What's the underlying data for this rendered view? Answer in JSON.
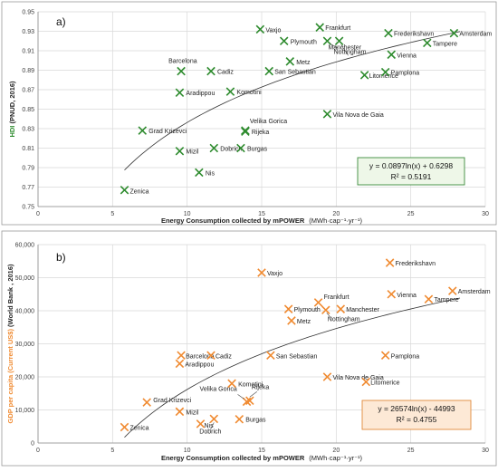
{
  "colors": {
    "panel_a_marker": "#2e8b2e",
    "panel_a_ylabel": "#2e8b2e",
    "panel_b_marker": "#f08a30",
    "panel_b_ylabel": "#f08a30",
    "panel_a_box_bg": "#eef7e8",
    "panel_a_box_border": "#3a8a3a",
    "panel_b_box_bg": "#fde9d6",
    "panel_b_box_border": "#e08a3a"
  },
  "chart_data": [
    {
      "type": "scatter",
      "panel": "a)",
      "xlabel": "Energy Consumption collected by mPOWER",
      "xlabel_units": "(MWh·cap⁻¹·yr⁻¹)",
      "ylabel_main": "HDI",
      "ylabel_rest": " (PNUD, 2016)",
      "xlim": [
        0,
        30
      ],
      "ylim": [
        0.75,
        0.95
      ],
      "xticks": [
        0,
        5,
        10,
        15,
        20,
        25,
        30
      ],
      "yticks": [
        0.75,
        0.77,
        0.79,
        0.81,
        0.83,
        0.85,
        0.87,
        0.89,
        0.91,
        0.93,
        0.95
      ],
      "ytick_labels": [
        "0.75",
        "0.77",
        "0.79",
        "0.81",
        "0.83",
        "0.85",
        "0.87",
        "0.89",
        "0.91",
        "0.93",
        "0.95"
      ],
      "trend": {
        "a": 0.0897,
        "b": 0.6298,
        "x_from": 5.8,
        "x_to": 28.3
      },
      "equation": "y = 0.0897ln(x) + 0.6298",
      "r2": "R² = 0.5191",
      "points": [
        {
          "name": "Zenica",
          "x": 5.8,
          "y": 0.767
        },
        {
          "name": "Grad Krizevci",
          "x": 7.0,
          "y": 0.828
        },
        {
          "name": "Mizil",
          "x": 9.5,
          "y": 0.807
        },
        {
          "name": "Nis",
          "x": 10.8,
          "y": 0.785
        },
        {
          "name": "Dobrich",
          "x": 11.8,
          "y": 0.81
        },
        {
          "name": "Burgas",
          "x": 13.6,
          "y": 0.81
        },
        {
          "name": "Velika Gorica",
          "x": 13.9,
          "y": 0.828
        },
        {
          "name": "Rijeka",
          "x": 13.9,
          "y": 0.827
        },
        {
          "name": "Barcelona",
          "x": 9.6,
          "y": 0.889
        },
        {
          "name": "Cadiz",
          "x": 11.6,
          "y": 0.889
        },
        {
          "name": "Aradippou",
          "x": 9.5,
          "y": 0.867
        },
        {
          "name": "Komotini",
          "x": 12.9,
          "y": 0.868
        },
        {
          "name": "San Sebastian",
          "x": 15.5,
          "y": 0.889
        },
        {
          "name": "Metz",
          "x": 16.9,
          "y": 0.899
        },
        {
          "name": "Vaxjo",
          "x": 14.9,
          "y": 0.932
        },
        {
          "name": "Plymouth",
          "x": 16.5,
          "y": 0.92
        },
        {
          "name": "Manchester",
          "x": 19.4,
          "y": 0.92
        },
        {
          "name": "Nottingham",
          "x": 20.2,
          "y": 0.92
        },
        {
          "name": "Frankfurt",
          "x": 18.9,
          "y": 0.934
        },
        {
          "name": "Vila Nova de Gaia",
          "x": 19.4,
          "y": 0.845
        },
        {
          "name": "Litomerice",
          "x": 21.9,
          "y": 0.885
        },
        {
          "name": "Pamplona",
          "x": 23.3,
          "y": 0.888
        },
        {
          "name": "Vienna",
          "x": 23.7,
          "y": 0.906
        },
        {
          "name": "Frederikshavn",
          "x": 23.5,
          "y": 0.928
        },
        {
          "name": "Tampere",
          "x": 26.1,
          "y": 0.918
        },
        {
          "name": "Amsterdam",
          "x": 27.9,
          "y": 0.928
        }
      ]
    },
    {
      "type": "scatter",
      "panel": "b)",
      "xlabel": "Energy Consumption collected by mPOWER",
      "xlabel_units": "(MWh·cap⁻¹·yr⁻¹)",
      "ylabel_main": "GDP per capita (Current US$)",
      "ylabel_rest": " (World Bank , 2016)",
      "xlim": [
        0,
        30
      ],
      "ylim": [
        0,
        60000
      ],
      "xticks": [
        0,
        5,
        10,
        15,
        20,
        25,
        30
      ],
      "yticks": [
        0,
        10000,
        20000,
        30000,
        40000,
        50000,
        60000
      ],
      "ytick_labels": [
        "0",
        "10,000",
        "20,000",
        "30,000",
        "40,000",
        "50,000",
        "60,000"
      ],
      "trend": {
        "a": 26574,
        "b": -44993,
        "x_from": 5.8,
        "x_to": 28.3
      },
      "equation": "y = 26574ln(x) - 44993",
      "r2": "R² = 0.4755",
      "points": [
        {
          "name": "Zenica",
          "x": 5.8,
          "y": 4800
        },
        {
          "name": "Grad Krizevci",
          "x": 7.3,
          "y": 12300
        },
        {
          "name": "Mizil",
          "x": 9.5,
          "y": 9500
        },
        {
          "name": "Nis",
          "x": 10.9,
          "y": 5800
        },
        {
          "name": "Dobrich",
          "x": 11.8,
          "y": 7300
        },
        {
          "name": "Burgas",
          "x": 13.5,
          "y": 7200
        },
        {
          "name": "Velika Gorica",
          "x": 14.0,
          "y": 12500
        },
        {
          "name": "Rijeka",
          "x": 14.2,
          "y": 12800
        },
        {
          "name": "Barcelona",
          "x": 9.6,
          "y": 26500
        },
        {
          "name": "Cadiz",
          "x": 11.6,
          "y": 26500
        },
        {
          "name": "Aradippou",
          "x": 9.5,
          "y": 24000
        },
        {
          "name": "Komotini",
          "x": 13.0,
          "y": 18000
        },
        {
          "name": "San Sebastian",
          "x": 15.6,
          "y": 26500
        },
        {
          "name": "Metz",
          "x": 17.0,
          "y": 37000
        },
        {
          "name": "Vaxjo",
          "x": 15.0,
          "y": 51500
        },
        {
          "name": "Plymouth",
          "x": 16.8,
          "y": 40500
        },
        {
          "name": "Frankfurt",
          "x": 18.8,
          "y": 42500
        },
        {
          "name": "Manchester",
          "x": 20.3,
          "y": 40500
        },
        {
          "name": "Nottingham",
          "x": 19.3,
          "y": 40200
        },
        {
          "name": "Vila Nova de Gaia",
          "x": 19.4,
          "y": 20000
        },
        {
          "name": "Litomerice",
          "x": 22.0,
          "y": 18500
        },
        {
          "name": "Pamplona",
          "x": 23.3,
          "y": 26500
        },
        {
          "name": "Vienna",
          "x": 23.7,
          "y": 45000
        },
        {
          "name": "Frederikshavn",
          "x": 23.6,
          "y": 54500
        },
        {
          "name": "Tampere",
          "x": 26.2,
          "y": 43500
        },
        {
          "name": "Amsterdam",
          "x": 27.8,
          "y": 46000
        }
      ]
    }
  ]
}
